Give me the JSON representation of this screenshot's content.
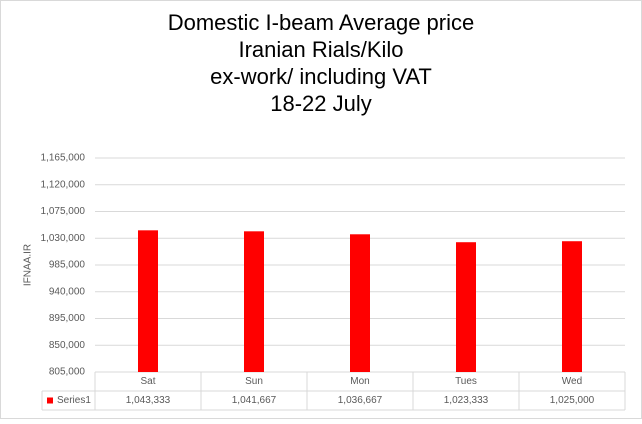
{
  "chart_data": {
    "type": "bar",
    "title_lines": [
      "Domestic I-beam Average price",
      "Iranian Rials/Kilo",
      "ex-work/ including VAT",
      "18-22 July"
    ],
    "y_label": "IFNAA.IR",
    "categories": [
      "Sat",
      "Sun",
      "Mon",
      "Tues",
      "Wed"
    ],
    "series": [
      {
        "name": "Series1",
        "color": "#ff0000",
        "values": [
          1043333,
          1041667,
          1036667,
          1023333,
          1025000
        ],
        "value_labels": [
          "1,043,333",
          "1,041,667",
          "1,036,667",
          "1,023,333",
          "1,025,000"
        ]
      }
    ],
    "ylim": [
      805000,
      1165000
    ],
    "yticks": [
      {
        "value": 805000,
        "label": "805,000"
      },
      {
        "value": 850000,
        "label": "850,000"
      },
      {
        "value": 895000,
        "label": "895,000"
      },
      {
        "value": 940000,
        "label": "940,000"
      },
      {
        "value": 985000,
        "label": "985,000"
      },
      {
        "value": 1030000,
        "label": "1,030,000"
      },
      {
        "value": 1075000,
        "label": "1,075,000"
      },
      {
        "value": 1120000,
        "label": "1,120,000"
      },
      {
        "value": 1165000,
        "label": "1,165,000"
      }
    ],
    "grid": true,
    "data_table": true
  }
}
